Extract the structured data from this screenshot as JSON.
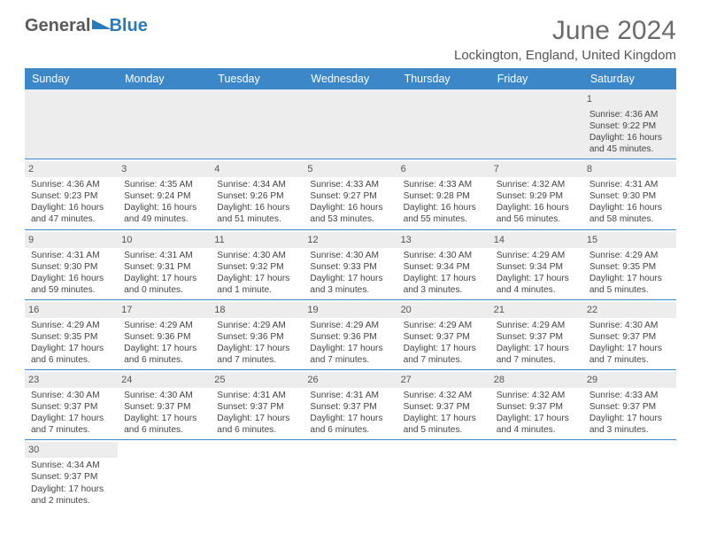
{
  "logo": {
    "part1": "General",
    "part2": "Blue"
  },
  "title": "June 2024",
  "location": "Lockington, England, United Kingdom",
  "weekdays": [
    "Sunday",
    "Monday",
    "Tuesday",
    "Wednesday",
    "Thursday",
    "Friday",
    "Saturday"
  ],
  "startOffset": 6,
  "days": [
    {
      "n": 1,
      "sr": "4:36 AM",
      "ss": "9:22 PM",
      "dl": "16 hours and 45 minutes."
    },
    {
      "n": 2,
      "sr": "4:36 AM",
      "ss": "9:23 PM",
      "dl": "16 hours and 47 minutes."
    },
    {
      "n": 3,
      "sr": "4:35 AM",
      "ss": "9:24 PM",
      "dl": "16 hours and 49 minutes."
    },
    {
      "n": 4,
      "sr": "4:34 AM",
      "ss": "9:26 PM",
      "dl": "16 hours and 51 minutes."
    },
    {
      "n": 5,
      "sr": "4:33 AM",
      "ss": "9:27 PM",
      "dl": "16 hours and 53 minutes."
    },
    {
      "n": 6,
      "sr": "4:33 AM",
      "ss": "9:28 PM",
      "dl": "16 hours and 55 minutes."
    },
    {
      "n": 7,
      "sr": "4:32 AM",
      "ss": "9:29 PM",
      "dl": "16 hours and 56 minutes."
    },
    {
      "n": 8,
      "sr": "4:31 AM",
      "ss": "9:30 PM",
      "dl": "16 hours and 58 minutes."
    },
    {
      "n": 9,
      "sr": "4:31 AM",
      "ss": "9:30 PM",
      "dl": "16 hours and 59 minutes."
    },
    {
      "n": 10,
      "sr": "4:31 AM",
      "ss": "9:31 PM",
      "dl": "17 hours and 0 minutes."
    },
    {
      "n": 11,
      "sr": "4:30 AM",
      "ss": "9:32 PM",
      "dl": "17 hours and 1 minute."
    },
    {
      "n": 12,
      "sr": "4:30 AM",
      "ss": "9:33 PM",
      "dl": "17 hours and 3 minutes."
    },
    {
      "n": 13,
      "sr": "4:30 AM",
      "ss": "9:34 PM",
      "dl": "17 hours and 3 minutes."
    },
    {
      "n": 14,
      "sr": "4:29 AM",
      "ss": "9:34 PM",
      "dl": "17 hours and 4 minutes."
    },
    {
      "n": 15,
      "sr": "4:29 AM",
      "ss": "9:35 PM",
      "dl": "17 hours and 5 minutes."
    },
    {
      "n": 16,
      "sr": "4:29 AM",
      "ss": "9:35 PM",
      "dl": "17 hours and 6 minutes."
    },
    {
      "n": 17,
      "sr": "4:29 AM",
      "ss": "9:36 PM",
      "dl": "17 hours and 6 minutes."
    },
    {
      "n": 18,
      "sr": "4:29 AM",
      "ss": "9:36 PM",
      "dl": "17 hours and 7 minutes."
    },
    {
      "n": 19,
      "sr": "4:29 AM",
      "ss": "9:36 PM",
      "dl": "17 hours and 7 minutes."
    },
    {
      "n": 20,
      "sr": "4:29 AM",
      "ss": "9:37 PM",
      "dl": "17 hours and 7 minutes."
    },
    {
      "n": 21,
      "sr": "4:29 AM",
      "ss": "9:37 PM",
      "dl": "17 hours and 7 minutes."
    },
    {
      "n": 22,
      "sr": "4:30 AM",
      "ss": "9:37 PM",
      "dl": "17 hours and 7 minutes."
    },
    {
      "n": 23,
      "sr": "4:30 AM",
      "ss": "9:37 PM",
      "dl": "17 hours and 7 minutes."
    },
    {
      "n": 24,
      "sr": "4:30 AM",
      "ss": "9:37 PM",
      "dl": "17 hours and 6 minutes."
    },
    {
      "n": 25,
      "sr": "4:31 AM",
      "ss": "9:37 PM",
      "dl": "17 hours and 6 minutes."
    },
    {
      "n": 26,
      "sr": "4:31 AM",
      "ss": "9:37 PM",
      "dl": "17 hours and 6 minutes."
    },
    {
      "n": 27,
      "sr": "4:32 AM",
      "ss": "9:37 PM",
      "dl": "17 hours and 5 minutes."
    },
    {
      "n": 28,
      "sr": "4:32 AM",
      "ss": "9:37 PM",
      "dl": "17 hours and 4 minutes."
    },
    {
      "n": 29,
      "sr": "4:33 AM",
      "ss": "9:37 PM",
      "dl": "17 hours and 3 minutes."
    },
    {
      "n": 30,
      "sr": "4:34 AM",
      "ss": "9:37 PM",
      "dl": "17 hours and 2 minutes."
    }
  ],
  "labels": {
    "sunrise": "Sunrise: ",
    "sunset": "Sunset: ",
    "daylight": "Daylight: "
  },
  "colors": {
    "headerBlue": "#3b87c8",
    "logoBlue": "#2a7ab9",
    "grayText": "#6b6b6b",
    "rowShade": "#ededed"
  },
  "typography": {
    "title_pt": 30,
    "location_pt": 15,
    "head_pt": 12.5,
    "cell_pt": 10.2
  }
}
